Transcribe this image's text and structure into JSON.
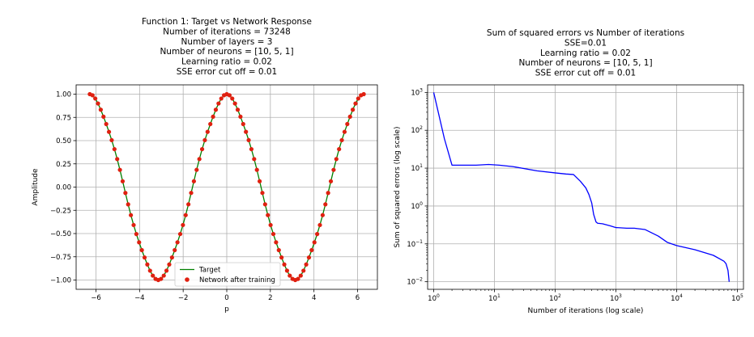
{
  "chart_data": [
    {
      "type": "line+scatter",
      "title_lines": [
        "Function 1: Target vs Network Response",
        "Number of iterations = 73248",
        "Number of layers = 3",
        "Number of neurons = [10, 5, 1]",
        "Learning ratio = 0.02",
        "SSE error cut off = 0.01"
      ],
      "xlabel": "p",
      "ylabel": "Amplitude",
      "xlim": [
        -6.91,
        6.91
      ],
      "ylim": [
        -1.1,
        1.1
      ],
      "xticks": [
        -6,
        -4,
        -2,
        0,
        2,
        4,
        6
      ],
      "xtick_labels": [
        "−6",
        "−4",
        "−2",
        "0",
        "2",
        "4",
        "6"
      ],
      "yticks": [
        1.0,
        0.75,
        0.5,
        0.25,
        0.0,
        -0.25,
        -0.5,
        -0.75,
        -1.0
      ],
      "ytick_labels": [
        "1.00",
        "0.75",
        "0.50",
        "0.25",
        "0.00",
        "−0.25",
        "−0.50",
        "−0.75",
        "−1.00"
      ],
      "grid": true,
      "function": "cos(p) with small ripple cos(4p)",
      "x_range": [
        -6.283,
        6.283
      ],
      "num_points": 101,
      "series": [
        {
          "name": "Target",
          "style": "line",
          "color": "#008000"
        },
        {
          "name": "Network after training",
          "style": "markers",
          "color": "#e02010"
        }
      ],
      "legend_position": "lower-center"
    },
    {
      "type": "line",
      "scale": "log-log",
      "title_lines": [
        "Sum of squared errors vs Number of iterations",
        "SSE=0.01",
        "Learning ratio = 0.02",
        "Number of neurons = [10, 5, 1]",
        "SSE error cut off = 0.01"
      ],
      "xlabel": "Number of iterations (log scale)",
      "ylabel": "Sum of squared errors (log scale)",
      "xlim_log10": [
        -0.1,
        5.1
      ],
      "ylim_log10": [
        -2.2,
        3.2
      ],
      "xticks_exp": [
        0,
        1,
        2,
        3,
        4,
        5
      ],
      "yticks_exp": [
        -2,
        -1,
        0,
        1,
        2,
        3
      ],
      "tick_base": "10",
      "grid": true,
      "series": [
        {
          "name": "SSE",
          "color": "#0000ff",
          "x": [
            1,
            1.5,
            2,
            3,
            5,
            8,
            12,
            20,
            50,
            100,
            150,
            200,
            260,
            320,
            360,
            400,
            430,
            470,
            500,
            600,
            800,
            1000,
            1500,
            2000,
            3000,
            5000,
            7000,
            10000,
            20000,
            40000,
            60000,
            65000,
            70000,
            73248
          ],
          "values": [
            1000,
            60,
            12,
            12,
            12,
            12.5,
            12,
            11,
            8.5,
            7.5,
            7,
            6.8,
            4.5,
            3,
            2,
            1.2,
            0.6,
            0.38,
            0.35,
            0.34,
            0.3,
            0.27,
            0.26,
            0.26,
            0.24,
            0.16,
            0.11,
            0.09,
            0.07,
            0.05,
            0.035,
            0.03,
            0.02,
            0.01
          ]
        }
      ]
    }
  ]
}
